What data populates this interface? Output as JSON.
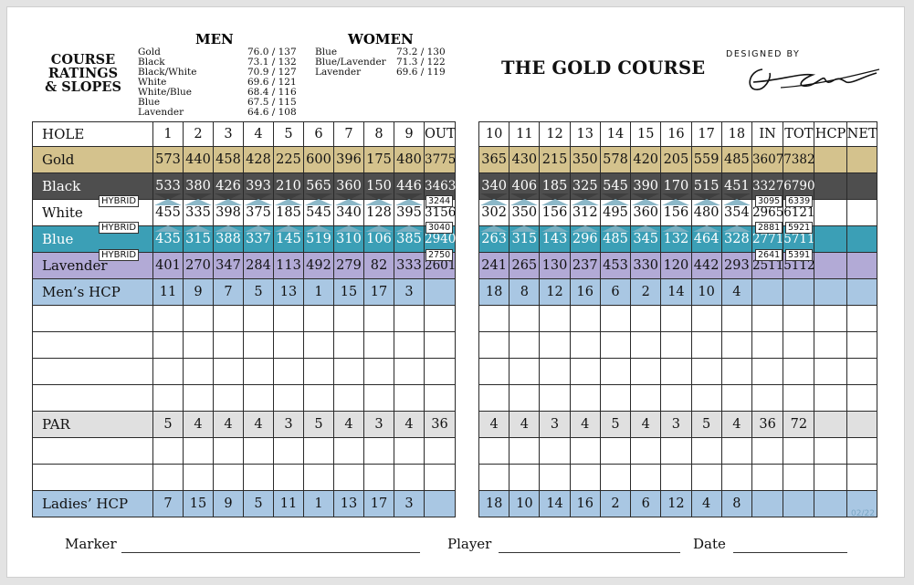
{
  "ratings": {
    "title_lines": [
      "COURSE",
      "RATINGS",
      "& SLOPES"
    ],
    "men_label": "MEN",
    "women_label": "WOMEN",
    "men": [
      {
        "tee": "Gold",
        "value": "76.0 / 137"
      },
      {
        "tee": "Black",
        "value": "73.1 / 132"
      },
      {
        "tee": "Black/White",
        "value": "70.9 / 127"
      },
      {
        "tee": "White",
        "value": "69.6 / 121"
      },
      {
        "tee": "White/Blue",
        "value": "68.4 / 116"
      },
      {
        "tee": "Blue",
        "value": "67.5 / 115"
      },
      {
        "tee": "Lavender",
        "value": "64.6 / 108"
      }
    ],
    "women": [
      {
        "tee": "Blue",
        "value": "73.2 / 130"
      },
      {
        "tee": "Blue/Lavender",
        "value": "71.3 / 122"
      },
      {
        "tee": "Lavender",
        "value": "69.6 / 119"
      }
    ]
  },
  "course_title": "THE GOLD COURSE",
  "designed_by": "DESIGNED BY",
  "front": {
    "header": [
      "HOLE",
      "1",
      "2",
      "3",
      "4",
      "5",
      "6",
      "7",
      "8",
      "9",
      "OUT"
    ],
    "gold": [
      "Gold",
      "573",
      "440",
      "458",
      "428",
      "225",
      "600",
      "396",
      "175",
      "480",
      "3775"
    ],
    "black": [
      "Black",
      "533",
      "380",
      "426",
      "393",
      "210",
      "565",
      "360",
      "150",
      "446",
      "3463"
    ],
    "white": [
      "White",
      "455",
      "335",
      "398",
      "375",
      "185",
      "545",
      "340",
      "128",
      "395",
      "3156"
    ],
    "blue": [
      "Blue",
      "435",
      "315",
      "388",
      "337",
      "145",
      "519",
      "310",
      "106",
      "385",
      "2940"
    ],
    "lavender": [
      "Lavender",
      "401",
      "270",
      "347",
      "284",
      "113",
      "492",
      "279",
      "82",
      "333",
      "2601"
    ],
    "mens_hcp": [
      "Men’s HCP",
      "11",
      "9",
      "7",
      "5",
      "13",
      "1",
      "15",
      "17",
      "3",
      ""
    ],
    "par": [
      "PAR",
      "5",
      "4",
      "4",
      "4",
      "3",
      "5",
      "4",
      "3",
      "4",
      "36"
    ],
    "ladies_hcp": [
      "Ladies’ HCP",
      "7",
      "15",
      "9",
      "5",
      "11",
      "1",
      "13",
      "17",
      "3",
      ""
    ]
  },
  "back": {
    "header": [
      "10",
      "11",
      "12",
      "13",
      "14",
      "15",
      "16",
      "17",
      "18",
      "IN",
      "TOT",
      "HCP",
      "NET"
    ],
    "gold": [
      "365",
      "430",
      "215",
      "350",
      "578",
      "420",
      "205",
      "559",
      "485",
      "3607",
      "7382",
      "",
      ""
    ],
    "black": [
      "340",
      "406",
      "185",
      "325",
      "545",
      "390",
      "170",
      "515",
      "451",
      "3327",
      "6790",
      "",
      ""
    ],
    "white": [
      "302",
      "350",
      "156",
      "312",
      "495",
      "360",
      "156",
      "480",
      "354",
      "2965",
      "6121",
      "",
      ""
    ],
    "blue": [
      "263",
      "315",
      "143",
      "296",
      "485",
      "345",
      "132",
      "464",
      "328",
      "2771",
      "5711",
      "",
      ""
    ],
    "lavender": [
      "241",
      "265",
      "130",
      "237",
      "453",
      "330",
      "120",
      "442",
      "293",
      "2511",
      "5112",
      "",
      ""
    ],
    "mens_hcp": [
      "18",
      "8",
      "12",
      "16",
      "6",
      "2",
      "14",
      "10",
      "4",
      "",
      "",
      "",
      ""
    ],
    "par": [
      "4",
      "4",
      "3",
      "4",
      "5",
      "4",
      "3",
      "5",
      "4",
      "36",
      "72",
      "",
      ""
    ],
    "ladies_hcp": [
      "18",
      "10",
      "14",
      "16",
      "2",
      "6",
      "12",
      "4",
      "8",
      "",
      "",
      "",
      ""
    ]
  },
  "hybrid": {
    "label": "HYBRID",
    "front_out": [
      "3244",
      "3040",
      "2750"
    ],
    "back_in": [
      "3095",
      "2881",
      "2641"
    ],
    "back_tot": [
      "6339",
      "5921",
      "5391"
    ]
  },
  "footer": {
    "marker": "Marker",
    "player": "Player",
    "date": "Date"
  },
  "version": "02/22"
}
